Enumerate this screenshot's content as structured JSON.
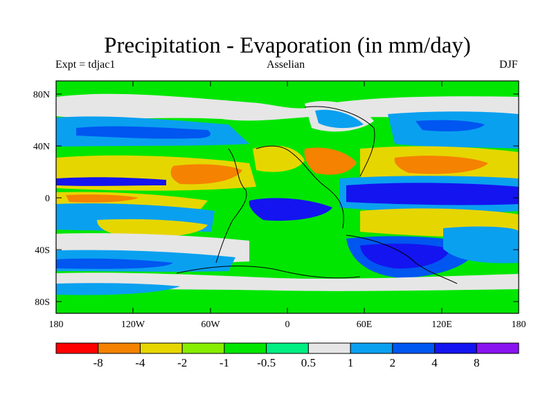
{
  "header": {
    "title": "Precipitation - Evaporation (in mm/day)",
    "experiment": "Expt = tdjac1",
    "scheme": "Asselian",
    "season": "DJF"
  },
  "axes": {
    "y_ticks": [
      "80N",
      "40N",
      "0",
      "40S",
      "80S"
    ],
    "x_ticks": [
      "180",
      "120W",
      "60W",
      "0",
      "60E",
      "120E",
      "180"
    ]
  },
  "colorbar": {
    "colors": [
      "#ff0000",
      "#f58200",
      "#e6d600",
      "#88ee00",
      "#00e600",
      "#00ee82",
      "#e6e6e6",
      "#0aa0f0",
      "#0056f0",
      "#1414f0",
      "#8a14f0"
    ],
    "labels": [
      "-8",
      "-4",
      "-2",
      "-1",
      "-0.5",
      "0.5",
      "1",
      "2",
      "4",
      "8"
    ]
  },
  "palette": {
    "background": "#00e600"
  }
}
